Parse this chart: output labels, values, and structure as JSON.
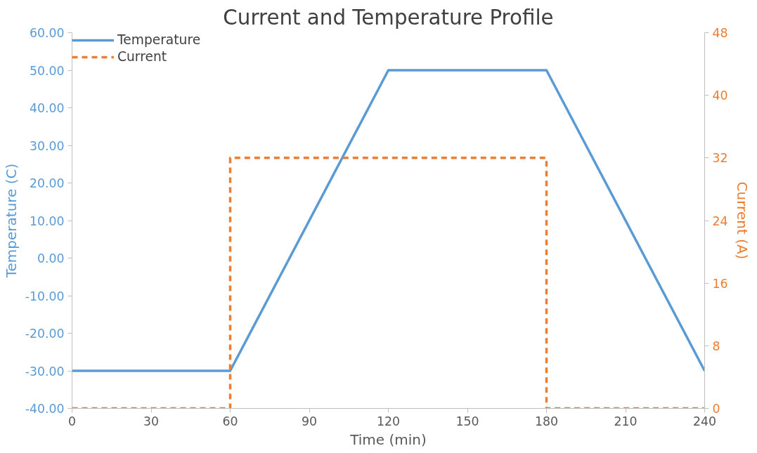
{
  "chart_data": {
    "type": "line",
    "title": "Current and Temperature Profile",
    "xlabel": "Time (min)",
    "ylabel": "Temperature (C)",
    "y2label": "Current (A)",
    "xlim": [
      0,
      240
    ],
    "xticks": [
      0,
      30,
      60,
      90,
      120,
      150,
      180,
      210,
      240
    ],
    "ylim": [
      -40,
      60
    ],
    "yticks": [
      {
        "value": -40,
        "label": "-40.00"
      },
      {
        "value": -30,
        "label": "-30.00"
      },
      {
        "value": -20,
        "label": "-20.00"
      },
      {
        "value": -10,
        "label": "-10.00"
      },
      {
        "value": 0,
        "label": "0.00"
      },
      {
        "value": 10,
        "label": "10.00"
      },
      {
        "value": 20,
        "label": "20.00"
      },
      {
        "value": 30,
        "label": "30.00"
      },
      {
        "value": 40,
        "label": "40.00"
      },
      {
        "value": 50,
        "label": "50.00"
      },
      {
        "value": 60,
        "label": "60.00"
      }
    ],
    "y2lim": [
      0,
      48
    ],
    "y2ticks": [
      0,
      8,
      16,
      24,
      32,
      40,
      48
    ],
    "grid": false,
    "legend": "top left",
    "series": [
      {
        "name": "Temperature",
        "color": "#5b9bd5",
        "line_style": "solid",
        "x": [
          0,
          60,
          120,
          180,
          240
        ],
        "values": [
          -30,
          -30,
          50,
          50,
          -30
        ]
      },
      {
        "name": "Current",
        "color": "#ed7d31",
        "line_style": "dashed",
        "axis": "y2",
        "x": [
          0,
          60,
          60,
          180,
          180,
          240
        ],
        "values": [
          0,
          0,
          32,
          32,
          0,
          0
        ]
      }
    ]
  }
}
